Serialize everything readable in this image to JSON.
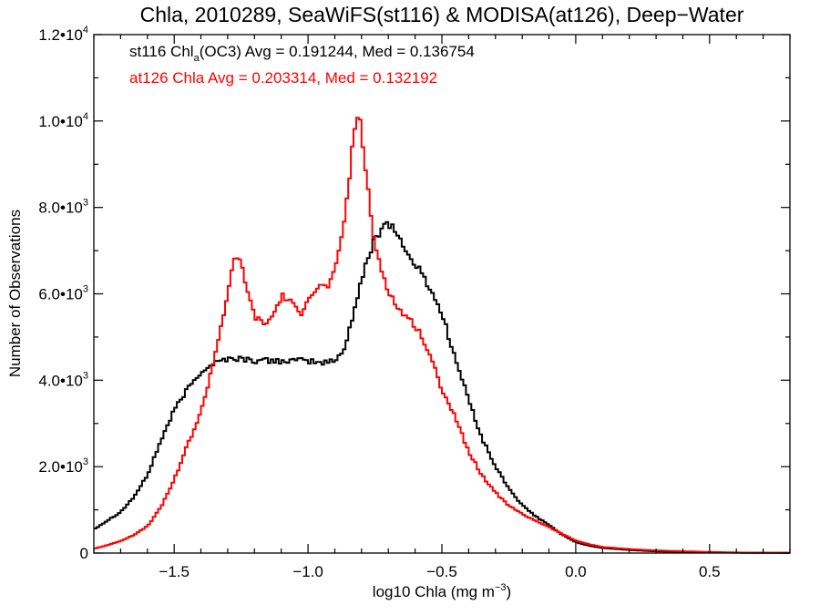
{
  "chart_data": {
    "type": "line",
    "title": "Chla, 2010289, SeaWiFS(st116) & MODISA(at126), Deep−Water",
    "xlabel_main": "log10 Chla (mg m",
    "xlabel_sup": "−3",
    "xlabel_end": ")",
    "ylabel": "Number of Observations",
    "xlim": [
      -1.8,
      0.8
    ],
    "ylim": [
      0,
      12000
    ],
    "x_ticks": [
      {
        "value": -1.5,
        "label": "−1.5"
      },
      {
        "value": -1.0,
        "label": "−1.0"
      },
      {
        "value": -0.5,
        "label": "−0.5"
      },
      {
        "value": 0.0,
        "label": "0.0"
      },
      {
        "value": 0.5,
        "label": "0.5"
      }
    ],
    "y_ticks": [
      {
        "value": 0,
        "mant": "0",
        "exp": ""
      },
      {
        "value": 2000,
        "mant": "2.0•10",
        "exp": "3"
      },
      {
        "value": 4000,
        "mant": "4.0•10",
        "exp": "3"
      },
      {
        "value": 6000,
        "mant": "6.0•10",
        "exp": "3"
      },
      {
        "value": 8000,
        "mant": "8.0•10",
        "exp": "3"
      },
      {
        "value": 10000,
        "mant": "1.0•10",
        "exp": "4"
      },
      {
        "value": 12000,
        "mant": "1.2•10",
        "exp": "4"
      }
    ],
    "annotations": {
      "line1_a": "st116 Chl",
      "line1_sub": "a",
      "line1_b": "(OC3) Avg = 0.191244, Med = 0.136754",
      "line2": "at126 Chla Avg = 0.203314, Med = 0.132192"
    },
    "series": [
      {
        "key": "st116",
        "color": "#000000",
        "points": [
          [
            -1.8,
            550
          ],
          [
            -1.75,
            750
          ],
          [
            -1.7,
            950
          ],
          [
            -1.65,
            1300
          ],
          [
            -1.6,
            1800
          ],
          [
            -1.55,
            2600
          ],
          [
            -1.5,
            3300
          ],
          [
            -1.45,
            3800
          ],
          [
            -1.4,
            4200
          ],
          [
            -1.35,
            4400
          ],
          [
            -1.3,
            4500
          ],
          [
            -1.25,
            4500
          ],
          [
            -1.2,
            4450
          ],
          [
            -1.15,
            4450
          ],
          [
            -1.1,
            4450
          ],
          [
            -1.05,
            4450
          ],
          [
            -1.0,
            4450
          ],
          [
            -0.95,
            4400
          ],
          [
            -0.9,
            4450
          ],
          [
            -0.87,
            4650
          ],
          [
            -0.84,
            5300
          ],
          [
            -0.8,
            6300
          ],
          [
            -0.76,
            7150
          ],
          [
            -0.72,
            7600
          ],
          [
            -0.7,
            7650
          ],
          [
            -0.67,
            7450
          ],
          [
            -0.63,
            6900
          ],
          [
            -0.6,
            6700
          ],
          [
            -0.55,
            6200
          ],
          [
            -0.5,
            5550
          ],
          [
            -0.45,
            4500
          ],
          [
            -0.4,
            3550
          ],
          [
            -0.35,
            2650
          ],
          [
            -0.3,
            2000
          ],
          [
            -0.25,
            1500
          ],
          [
            -0.2,
            1100
          ],
          [
            -0.15,
            850
          ],
          [
            -0.1,
            650
          ],
          [
            -0.05,
            420
          ],
          [
            0.0,
            250
          ],
          [
            0.05,
            170
          ],
          [
            0.1,
            120
          ],
          [
            0.2,
            70
          ],
          [
            0.3,
            40
          ],
          [
            0.4,
            25
          ],
          [
            0.5,
            15
          ],
          [
            0.6,
            8
          ],
          [
            0.7,
            5
          ],
          [
            0.8,
            3
          ]
        ]
      },
      {
        "key": "at126",
        "color": "#ff0000",
        "points": [
          [
            -1.8,
            100
          ],
          [
            -1.75,
            180
          ],
          [
            -1.7,
            280
          ],
          [
            -1.65,
            420
          ],
          [
            -1.6,
            620
          ],
          [
            -1.55,
            1050
          ],
          [
            -1.5,
            1700
          ],
          [
            -1.45,
            2500
          ],
          [
            -1.4,
            3250
          ],
          [
            -1.37,
            4000
          ],
          [
            -1.34,
            4800
          ],
          [
            -1.31,
            5700
          ],
          [
            -1.29,
            6350
          ],
          [
            -1.27,
            6850
          ],
          [
            -1.25,
            6700
          ],
          [
            -1.23,
            6200
          ],
          [
            -1.21,
            5650
          ],
          [
            -1.19,
            5400
          ],
          [
            -1.16,
            5300
          ],
          [
            -1.13,
            5500
          ],
          [
            -1.1,
            5950
          ],
          [
            -1.07,
            5850
          ],
          [
            -1.03,
            5500
          ],
          [
            -1.0,
            5950
          ],
          [
            -0.96,
            6150
          ],
          [
            -0.92,
            6200
          ],
          [
            -0.89,
            6700
          ],
          [
            -0.86,
            7900
          ],
          [
            -0.84,
            9000
          ],
          [
            -0.82,
            10200
          ],
          [
            -0.8,
            9800
          ],
          [
            -0.78,
            8600
          ],
          [
            -0.76,
            7450
          ],
          [
            -0.73,
            6650
          ],
          [
            -0.7,
            6100
          ],
          [
            -0.67,
            5700
          ],
          [
            -0.63,
            5450
          ],
          [
            -0.59,
            5200
          ],
          [
            -0.55,
            4650
          ],
          [
            -0.5,
            3800
          ],
          [
            -0.45,
            3150
          ],
          [
            -0.4,
            2350
          ],
          [
            -0.35,
            1800
          ],
          [
            -0.3,
            1400
          ],
          [
            -0.25,
            1100
          ],
          [
            -0.2,
            900
          ],
          [
            -0.15,
            750
          ],
          [
            -0.1,
            600
          ],
          [
            -0.05,
            440
          ],
          [
            0.0,
            290
          ],
          [
            0.05,
            200
          ],
          [
            0.1,
            140
          ],
          [
            0.2,
            90
          ],
          [
            0.3,
            60
          ],
          [
            0.4,
            40
          ],
          [
            0.5,
            25
          ],
          [
            0.6,
            12
          ],
          [
            0.7,
            6
          ],
          [
            0.8,
            3
          ]
        ]
      }
    ]
  }
}
